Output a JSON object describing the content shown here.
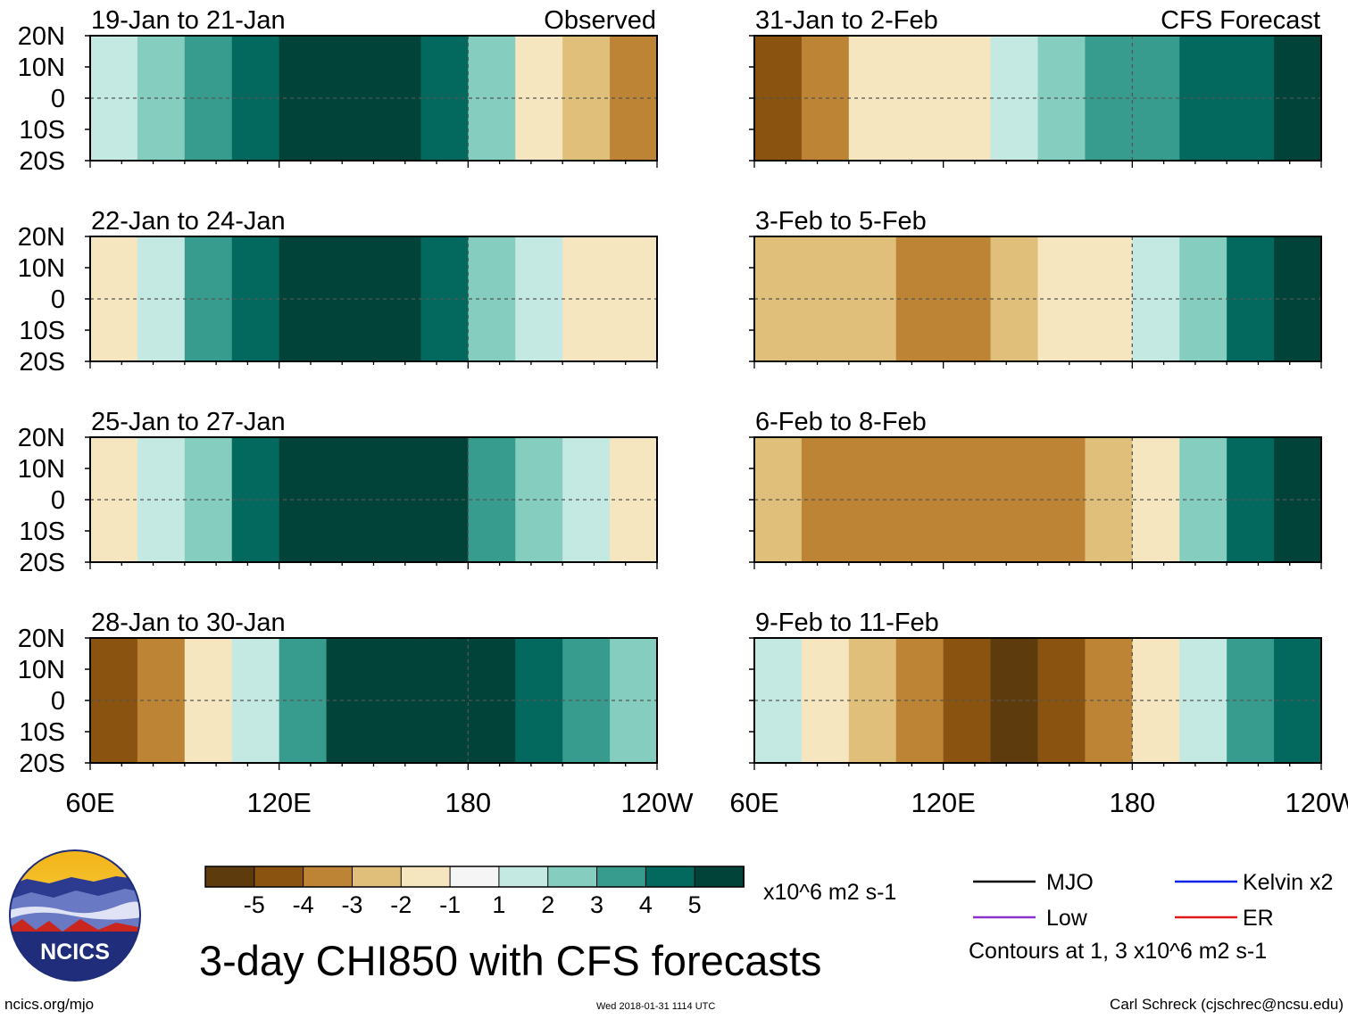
{
  "chart_data": {
    "type": "heatmap",
    "title": "3-day CHI850 with CFS forecasts",
    "variable": "CHI850",
    "units": "x10^6 m2 s-1",
    "colorbar": {
      "ticks": [
        "-5",
        "-4",
        "-3",
        "-2",
        "-1",
        "1",
        "2",
        "3",
        "4",
        "5"
      ],
      "colors": [
        "#5e3b0c",
        "#8a5410",
        "#be8435",
        "#dfbf79",
        "#f6e6bf",
        "#f5f5f5",
        "#c4e9e2",
        "#84cdbf",
        "#379b8e",
        "#03695e",
        "#024339"
      ]
    },
    "x_axis": {
      "ticks": [
        "60E",
        "120E",
        "180",
        "120W"
      ],
      "values_deg_east": [
        60,
        120,
        180,
        240
      ],
      "range_deg_east": [
        60,
        240
      ]
    },
    "y_axis": {
      "ticks": [
        "20N",
        "10N",
        "0",
        "10S",
        "20S"
      ],
      "values_deg_north": [
        20,
        10,
        0,
        -10,
        -20
      ],
      "range_deg_north": [
        -20,
        20
      ]
    },
    "contours": {
      "note": "Contours at 1, 3 x10^6 m2 s-1",
      "levels": [
        1,
        3
      ],
      "series": [
        {
          "name": "MJO",
          "color": "#000000"
        },
        {
          "name": "Kelvin x2",
          "color": "#0a22e6"
        },
        {
          "name": "Low",
          "color": "#8c33cc"
        },
        {
          "name": "ER",
          "color": "#e01a1a"
        }
      ]
    },
    "panels": [
      {
        "group": "observed",
        "label": "19-Jan to 21-Jan",
        "tag": "Observed",
        "field": [
          [
            1,
            2,
            3,
            4,
            5,
            5,
            5,
            4,
            2,
            -1,
            -2,
            -3
          ],
          [
            1,
            2,
            3,
            4,
            5,
            5,
            5,
            4,
            2,
            -1,
            -2,
            -3
          ],
          [
            1,
            2,
            3,
            4,
            5,
            5,
            5,
            4,
            2,
            -1,
            -2,
            -3
          ],
          [
            1,
            2,
            3,
            4,
            5,
            5,
            5,
            4,
            2,
            -1,
            -2,
            -3
          ],
          [
            1,
            2,
            3,
            4,
            5,
            5,
            5,
            4,
            2,
            -1,
            -2,
            -3
          ]
        ]
      },
      {
        "group": "observed",
        "label": "22-Jan to 24-Jan",
        "tag": "",
        "field": [
          [
            -1,
            1,
            3,
            4,
            5,
            5,
            5,
            4,
            2,
            1,
            -1,
            -1
          ],
          [
            -1,
            1,
            3,
            4,
            5,
            5,
            5,
            4,
            2,
            1,
            -1,
            -1
          ],
          [
            -1,
            1,
            3,
            4,
            5,
            5,
            5,
            4,
            2,
            1,
            -1,
            -1
          ],
          [
            -1,
            1,
            3,
            4,
            5,
            5,
            5,
            4,
            2,
            1,
            -1,
            -1
          ],
          [
            -1,
            1,
            3,
            4,
            5,
            5,
            5,
            4,
            2,
            1,
            -1,
            -1
          ]
        ]
      },
      {
        "group": "observed",
        "label": "25-Jan to 27-Jan",
        "tag": "",
        "field": [
          [
            -1,
            1,
            2,
            4,
            5,
            5,
            5,
            5,
            3,
            2,
            1,
            -1
          ],
          [
            -1,
            1,
            2,
            4,
            5,
            5,
            5,
            5,
            3,
            2,
            1,
            -1
          ],
          [
            -1,
            1,
            2,
            4,
            5,
            5,
            5,
            5,
            3,
            2,
            1,
            -1
          ],
          [
            -1,
            1,
            2,
            4,
            5,
            5,
            5,
            5,
            3,
            2,
            1,
            -1
          ],
          [
            -1,
            1,
            2,
            4,
            5,
            5,
            5,
            5,
            3,
            2,
            1,
            -1
          ]
        ]
      },
      {
        "group": "observed",
        "label": "28-Jan to 30-Jan",
        "tag": "",
        "field": [
          [
            -4,
            -3,
            -1,
            1,
            3,
            5,
            5,
            5,
            5,
            4,
            3,
            2
          ],
          [
            -4,
            -3,
            -1,
            1,
            3,
            5,
            5,
            5,
            5,
            4,
            3,
            2
          ],
          [
            -4,
            -3,
            -1,
            1,
            3,
            5,
            5,
            5,
            5,
            4,
            3,
            2
          ],
          [
            -4,
            -3,
            -1,
            1,
            3,
            5,
            5,
            5,
            5,
            4,
            3,
            2
          ],
          [
            -4,
            -3,
            -1,
            1,
            3,
            5,
            5,
            5,
            5,
            4,
            3,
            2
          ]
        ]
      },
      {
        "group": "forecast",
        "label": "31-Jan to 2-Feb",
        "tag": "CFS Forecast",
        "field": [
          [
            -4,
            -3,
            -1,
            -1,
            -1,
            1,
            2,
            3,
            3,
            4,
            4,
            5
          ],
          [
            -4,
            -3,
            -1,
            -1,
            -1,
            1,
            2,
            3,
            3,
            4,
            4,
            5
          ],
          [
            -4,
            -3,
            -1,
            -1,
            -1,
            1,
            2,
            3,
            3,
            4,
            4,
            5
          ],
          [
            -4,
            -3,
            -1,
            -1,
            -1,
            1,
            2,
            3,
            3,
            4,
            4,
            5
          ],
          [
            -4,
            -3,
            -1,
            -1,
            -1,
            1,
            2,
            3,
            3,
            4,
            4,
            5
          ]
        ]
      },
      {
        "group": "forecast",
        "label": "3-Feb to 5-Feb",
        "tag": "",
        "field": [
          [
            -2,
            -2,
            -2,
            -3,
            -3,
            -2,
            -1,
            -1,
            1,
            2,
            4,
            5
          ],
          [
            -2,
            -2,
            -2,
            -3,
            -3,
            -2,
            -1,
            -1,
            1,
            2,
            4,
            5
          ],
          [
            -2,
            -2,
            -2,
            -3,
            -3,
            -2,
            -1,
            -1,
            1,
            2,
            4,
            5
          ],
          [
            -2,
            -2,
            -2,
            -3,
            -3,
            -2,
            -1,
            -1,
            1,
            2,
            4,
            5
          ],
          [
            -2,
            -2,
            -2,
            -3,
            -3,
            -2,
            -1,
            -1,
            1,
            2,
            4,
            5
          ]
        ]
      },
      {
        "group": "forecast",
        "label": "6-Feb to 8-Feb",
        "tag": "",
        "field": [
          [
            -2,
            -3,
            -3,
            -3,
            -3,
            -3,
            -3,
            -2,
            -1,
            2,
            4,
            5
          ],
          [
            -2,
            -3,
            -3,
            -3,
            -3,
            -3,
            -3,
            -2,
            -1,
            2,
            4,
            5
          ],
          [
            -2,
            -3,
            -3,
            -3,
            -3,
            -3,
            -3,
            -2,
            -1,
            2,
            4,
            5
          ],
          [
            -2,
            -3,
            -3,
            -3,
            -3,
            -3,
            -3,
            -2,
            -1,
            2,
            4,
            5
          ],
          [
            -2,
            -3,
            -3,
            -3,
            -3,
            -3,
            -3,
            -2,
            -1,
            2,
            4,
            5
          ]
        ]
      },
      {
        "group": "forecast",
        "label": "9-Feb to 11-Feb",
        "tag": "",
        "field": [
          [
            1,
            -1,
            -2,
            -3,
            -4,
            -5,
            -4,
            -3,
            -1,
            1,
            3,
            4
          ],
          [
            1,
            -1,
            -2,
            -3,
            -4,
            -5,
            -4,
            -3,
            -1,
            1,
            3,
            4
          ],
          [
            1,
            -1,
            -2,
            -3,
            -4,
            -5,
            -4,
            -3,
            -1,
            1,
            3,
            4
          ],
          [
            1,
            -1,
            -2,
            -3,
            -4,
            -5,
            -4,
            -3,
            -1,
            1,
            3,
            4
          ],
          [
            1,
            -1,
            -2,
            -3,
            -4,
            -5,
            -4,
            -3,
            -1,
            1,
            3,
            4
          ]
        ]
      }
    ]
  },
  "footer": {
    "logo_text": "NCICS",
    "site": "ncics.org/mjo",
    "timestamp": "Wed 2018-01-31 1114 UTC",
    "credit": "Carl Schreck (cjschrec@ncsu.edu)"
  }
}
